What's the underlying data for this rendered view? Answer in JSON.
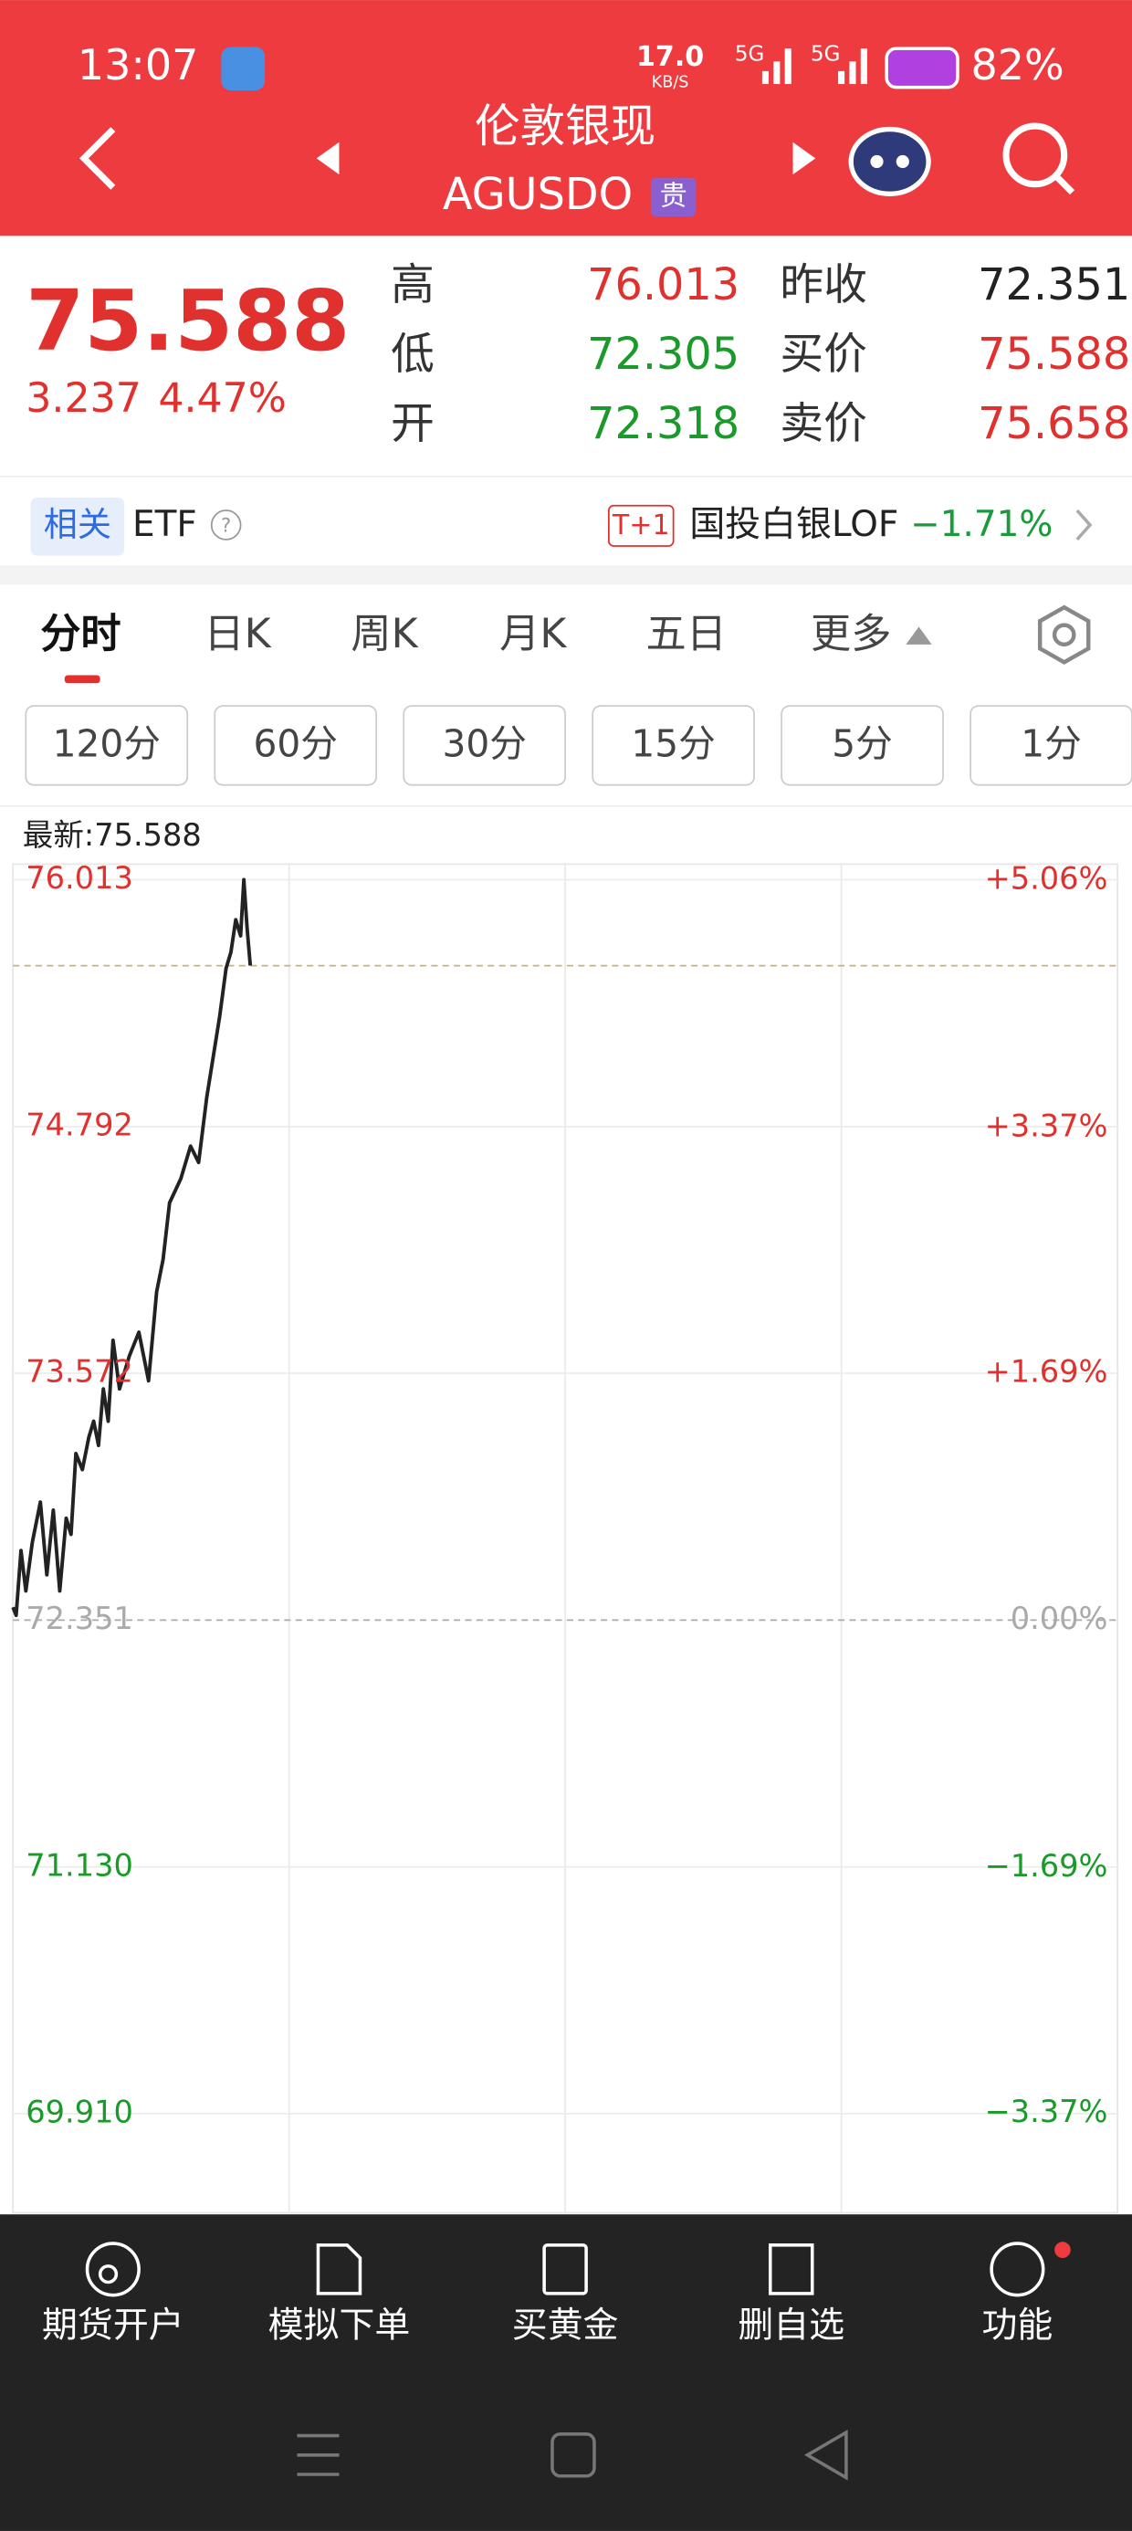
{
  "status": {
    "time": "13:07",
    "speed": "17.0",
    "speed_unit": "KB/S",
    "net1": "5G",
    "net2": "5G",
    "battery": "82%"
  },
  "header": {
    "title": "伦敦银现",
    "code": "AGUSDO",
    "badge": "贵"
  },
  "quote": {
    "price": "75.588",
    "change": "3.237",
    "change_pct": "4.47%",
    "stats": [
      [
        {
          "label": "高",
          "value": "76.013"
        },
        {
          "label": "昨收",
          "value": "72.351"
        }
      ],
      [
        {
          "label": "低",
          "value": "72.305"
        },
        {
          "label": "买价",
          "value": "75.588"
        }
      ],
      [
        {
          "label": "开",
          "value": "72.318"
        },
        {
          "label": "卖价",
          "value": "75.658"
        }
      ]
    ]
  },
  "etf": {
    "tag": "相关",
    "name": "ETF",
    "help": "?",
    "t1": "T+1",
    "fund": "国投白银LOF",
    "fund_change": "−1.71%"
  },
  "tabs": [
    "分时",
    "日K",
    "周K",
    "月K",
    "五日",
    "更多"
  ],
  "intervals": [
    "120分",
    "60分",
    "30分",
    "15分",
    "5分",
    "1分"
  ],
  "chart_data": {
    "type": "line",
    "latest_label": "最新:75.588",
    "latest_line": 75.588,
    "baseline": 72.351,
    "xlim": [
      0,
      684
    ],
    "ylim": [
      69.42,
      76.09
    ],
    "yticks": [
      {
        "value": 76.013,
        "label": "76.013"
      },
      {
        "value": 74.792,
        "label": "74.792"
      },
      {
        "value": 73.572,
        "label": "73.572"
      },
      {
        "value": 72.351,
        "label": "72.351"
      },
      {
        "value": 71.13,
        "label": "71.130"
      },
      {
        "value": 69.91,
        "label": "69.910"
      }
    ],
    "y2lim": [
      -4.05,
      5.17
    ],
    "y2ticks": [
      {
        "value": 5.06,
        "label": "+5.06%"
      },
      {
        "value": 3.37,
        "label": "+3.37%"
      },
      {
        "value": 1.69,
        "label": "+1.69%"
      },
      {
        "value": 0,
        "label": "0.00%"
      },
      {
        "value": -1.69,
        "label": "−1.69%"
      },
      {
        "value": -3.37,
        "label": "−3.37%"
      }
    ],
    "grid": true,
    "series": [
      {
        "color": "#222222",
        "x": [
          0,
          2,
          5,
          8,
          12,
          17,
          21,
          25,
          29,
          33,
          36,
          39,
          43,
          47,
          50,
          53,
          56,
          59,
          62,
          66,
          72,
          78,
          84,
          89,
          93,
          97,
          104,
          110,
          115,
          120,
          124,
          128,
          132,
          135,
          138,
          141,
          143,
          145,
          147
        ],
        "values": [
          72.415,
          72.375,
          72.695,
          72.495,
          72.735,
          72.935,
          72.575,
          72.895,
          72.495,
          72.855,
          72.775,
          73.175,
          73.095,
          73.255,
          73.335,
          73.215,
          73.495,
          73.335,
          73.735,
          73.495,
          73.655,
          73.775,
          73.535,
          73.975,
          74.135,
          74.415,
          74.535,
          74.695,
          74.615,
          74.935,
          75.135,
          75.335,
          75.575,
          75.655,
          75.815,
          75.735,
          76.013,
          75.775,
          75.588
        ]
      }
    ]
  },
  "nav": [
    "期货开户",
    "模拟下单",
    "买黄金",
    "删自选",
    "功能"
  ]
}
